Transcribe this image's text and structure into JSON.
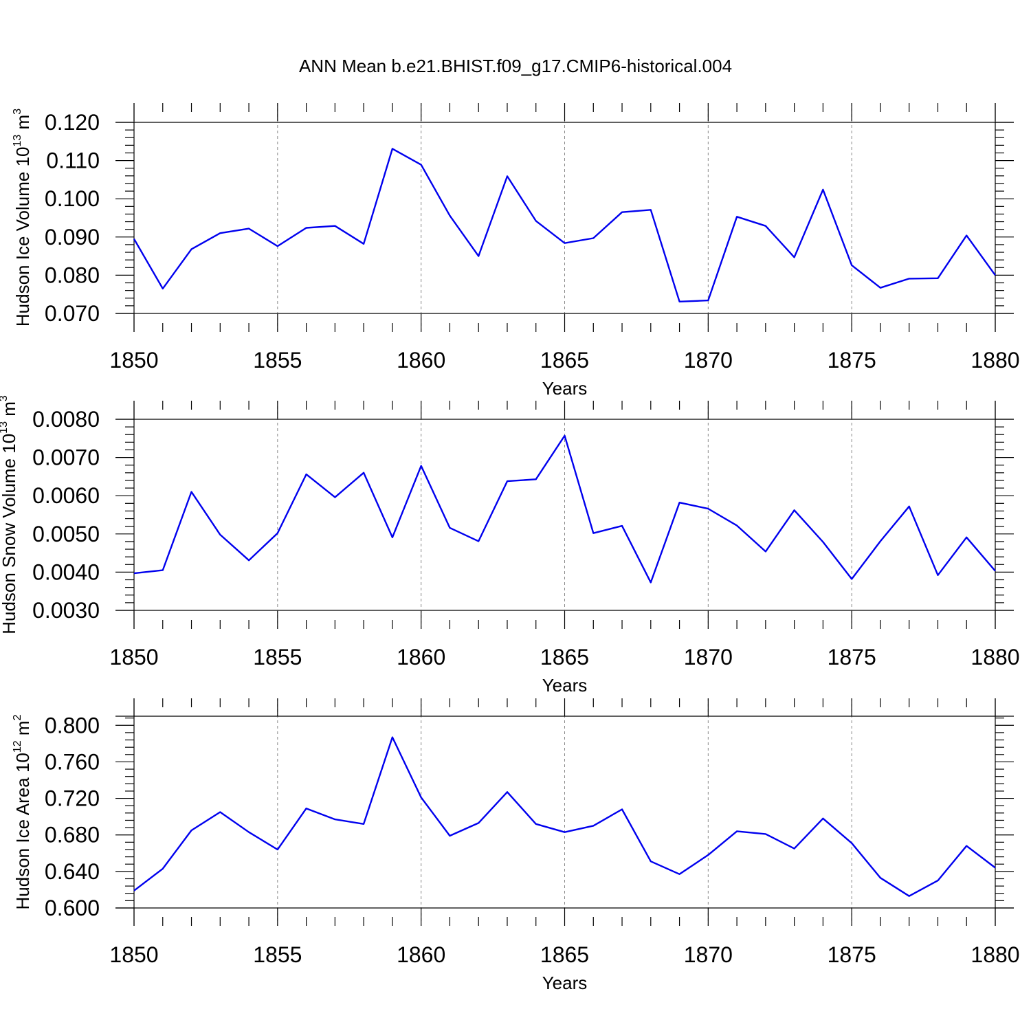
{
  "title": "ANN Mean b.e21.BHIST.f09_g17.CMIP6-historical.004",
  "colors": {
    "line": "#0000ee",
    "axis": "#000000",
    "grid": "#888888"
  },
  "chart_data": [
    {
      "type": "line",
      "ylabel": {
        "text": "Hudson Ice Volume 10",
        "sup": "13",
        "unit": " m",
        "unit_sup": "3"
      },
      "xlabel": "Years",
      "xlim": [
        1850,
        1880
      ],
      "ylim": [
        0.07,
        0.12
      ],
      "yticks": [
        "0.070",
        "0.080",
        "0.090",
        "0.100",
        "0.110",
        "0.120"
      ],
      "xticks": [
        "1850",
        "1855",
        "1860",
        "1865",
        "1870",
        "1875",
        "1880"
      ],
      "grid": "vertical dashed",
      "x": [
        1850,
        1851,
        1852,
        1853,
        1854,
        1855,
        1856,
        1857,
        1858,
        1859,
        1860,
        1861,
        1862,
        1863,
        1864,
        1865,
        1866,
        1867,
        1868,
        1869,
        1870,
        1871,
        1872,
        1873,
        1874,
        1875,
        1876,
        1877,
        1878,
        1879,
        1880
      ],
      "values": [
        0.0895,
        0.0765,
        0.0868,
        0.091,
        0.0922,
        0.0876,
        0.0924,
        0.0929,
        0.0882,
        0.1131,
        0.1089,
        0.0956,
        0.085,
        0.1059,
        0.0942,
        0.0884,
        0.0897,
        0.0965,
        0.0971,
        0.0731,
        0.0734,
        0.0953,
        0.0929,
        0.0847,
        0.1024,
        0.0826,
        0.0767,
        0.0791,
        0.0792,
        0.0904,
        0.08
      ]
    },
    {
      "type": "line",
      "ylabel": {
        "text": "Hudson Snow Volume 10",
        "sup": "13",
        "unit": " m",
        "unit_sup": "3"
      },
      "xlabel": "Years",
      "xlim": [
        1850,
        1880
      ],
      "ylim": [
        0.003,
        0.008
      ],
      "yticks": [
        "0.0030",
        "0.0040",
        "0.0050",
        "0.0060",
        "0.0070",
        "0.0080"
      ],
      "xticks": [
        "1850",
        "1855",
        "1860",
        "1865",
        "1870",
        "1875",
        "1880"
      ],
      "grid": "vertical dashed",
      "x": [
        1850,
        1851,
        1852,
        1853,
        1854,
        1855,
        1856,
        1857,
        1858,
        1859,
        1860,
        1861,
        1862,
        1863,
        1864,
        1865,
        1866,
        1867,
        1868,
        1869,
        1870,
        1871,
        1872,
        1873,
        1874,
        1875,
        1876,
        1877,
        1878,
        1879,
        1880
      ],
      "values": [
        0.00397,
        0.00405,
        0.0061,
        0.00498,
        0.00431,
        0.00502,
        0.00656,
        0.00596,
        0.0066,
        0.00491,
        0.00678,
        0.00516,
        0.00481,
        0.00638,
        0.00643,
        0.00757,
        0.00502,
        0.00521,
        0.00373,
        0.00582,
        0.00566,
        0.00522,
        0.00454,
        0.00562,
        0.00479,
        0.00382,
        0.00481,
        0.00572,
        0.00392,
        0.00491,
        0.00403
      ]
    },
    {
      "type": "line",
      "ylabel": {
        "text": "Hudson Ice Area 10",
        "sup": "12",
        "unit": " m",
        "unit_sup": "2"
      },
      "xlabel": "Years",
      "xlim": [
        1850,
        1880
      ],
      "ylim": [
        0.6,
        0.81
      ],
      "yticks": [
        "0.600",
        "0.640",
        "0.680",
        "0.720",
        "0.760",
        "0.800"
      ],
      "xticks": [
        "1850",
        "1855",
        "1860",
        "1865",
        "1870",
        "1875",
        "1880"
      ],
      "grid": "vertical dashed",
      "x": [
        1850,
        1851,
        1852,
        1853,
        1854,
        1855,
        1856,
        1857,
        1858,
        1859,
        1860,
        1861,
        1862,
        1863,
        1864,
        1865,
        1866,
        1867,
        1868,
        1869,
        1870,
        1871,
        1872,
        1873,
        1874,
        1875,
        1876,
        1877,
        1878,
        1879,
        1880
      ],
      "values": [
        0.619,
        0.643,
        0.685,
        0.705,
        0.683,
        0.664,
        0.709,
        0.697,
        0.692,
        0.787,
        0.721,
        0.679,
        0.693,
        0.727,
        0.692,
        0.683,
        0.69,
        0.708,
        0.651,
        0.637,
        0.658,
        0.684,
        0.681,
        0.665,
        0.698,
        0.671,
        0.633,
        0.613,
        0.63,
        0.668,
        0.644
      ]
    }
  ]
}
